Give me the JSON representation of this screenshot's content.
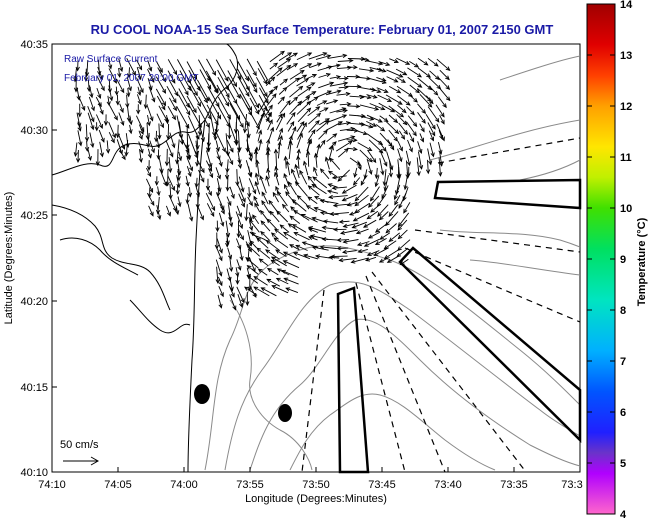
{
  "title": "RU COOL  NOAA-15  Sea Surface Temperature:  February 01, 2007 2150 GMT",
  "legend": {
    "line1": "Raw Surface Current",
    "line2": "February 01, 2007 20:00 GMT"
  },
  "scale_arrow_label": "50 cm/s",
  "axes": {
    "xlabel": "Longitude (Degrees:Minutes)",
    "ylabel": "Latitude (Degrees:Minutes)",
    "x_ticks": [
      "74:10",
      "74:05",
      "74:00",
      "73:55",
      "73:50",
      "73:45",
      "73:40",
      "73:35",
      "73:3"
    ],
    "y_ticks": [
      "40:35",
      "40:30",
      "40:25",
      "40:20",
      "40:15",
      "40:10"
    ]
  },
  "colorbar": {
    "title": "Temperature (°C)",
    "ticks": [
      "14",
      "13",
      "12",
      "11",
      "10",
      "9",
      "8",
      "7",
      "6",
      "5",
      "4"
    ],
    "min": 4,
    "max": 14
  },
  "colors": {
    "title": "#1a1aa6",
    "map_lines": "#000000",
    "bathymetry": "#8a8a8a"
  }
}
